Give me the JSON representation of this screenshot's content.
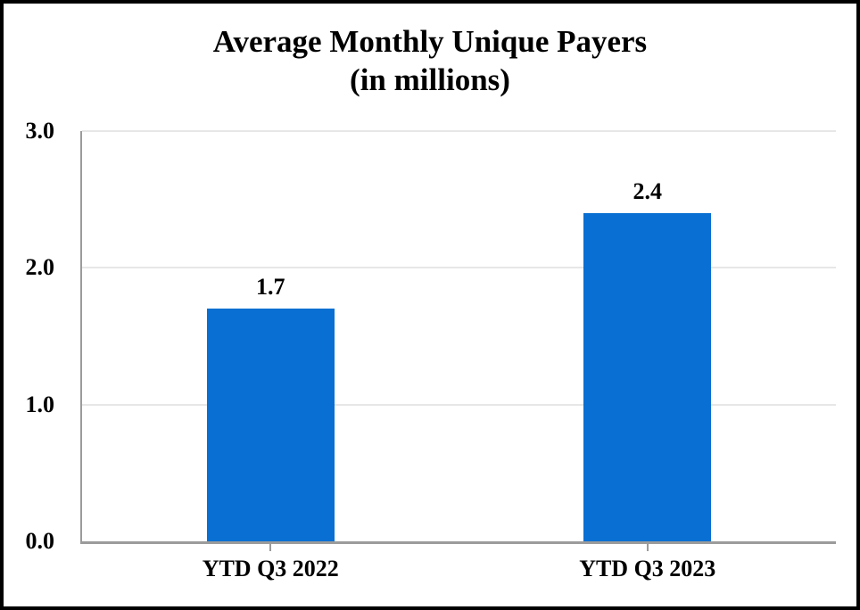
{
  "window": {
    "background": "#ffffff",
    "border_color": "#000000"
  },
  "chart_data": {
    "type": "bar",
    "title": "Average Monthly Unique Payers",
    "subtitle": "(in millions)",
    "categories": [
      "YTD Q3 2022",
      "YTD Q3 2023"
    ],
    "values": [
      1.7,
      2.4
    ],
    "data_labels": [
      "1.7",
      "2.4"
    ],
    "ytick_values": [
      0.0,
      1.0,
      2.0,
      3.0
    ],
    "ytick_labels": [
      "0.0",
      "1.0",
      "2.0",
      "3.0"
    ],
    "ylim": [
      0,
      3.0
    ],
    "xlabel": "",
    "ylabel": "",
    "grid": true,
    "legend": false,
    "colors": {
      "bar": "#0a6fd2",
      "gridline": "#e7e7e7",
      "axis_line": "#9b9b9b",
      "text": "#000000"
    }
  }
}
